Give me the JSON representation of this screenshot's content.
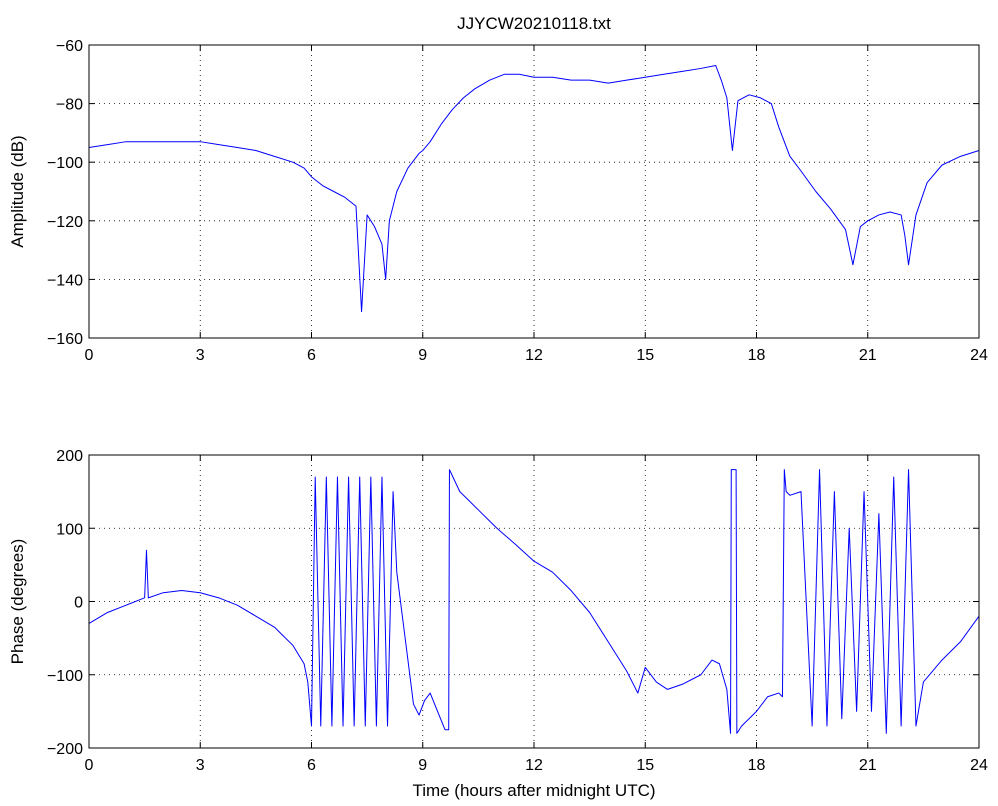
{
  "chart_data": [
    {
      "type": "line",
      "title": "JJYCW20210118.txt",
      "xlabel": "",
      "ylabel": "Amplitude (dB)",
      "xlim": [
        0,
        24
      ],
      "ylim": [
        -160,
        -60
      ],
      "xticks": [
        "0",
        "3",
        "6",
        "9",
        "12",
        "15",
        "18",
        "21",
        "24"
      ],
      "yticks": [
        "-60",
        "-80",
        "-100",
        "-120",
        "-140",
        "-160"
      ],
      "grid": true,
      "color": "#0000ff",
      "series": [
        {
          "x": [
            0,
            0.5,
            1,
            1.5,
            2,
            2.5,
            3,
            3.5,
            4,
            4.5,
            5,
            5.5,
            5.8,
            6.0,
            6.3,
            6.6,
            6.9,
            7.2,
            7.35,
            7.5,
            7.7,
            7.9,
            8.0,
            8.1,
            8.3,
            8.6,
            8.9,
            9.0,
            9.2,
            9.5,
            9.8,
            10.1,
            10.4,
            10.8,
            11.2,
            11.6,
            12,
            12.5,
            13,
            13.5,
            14,
            14.5,
            15,
            15.5,
            16,
            16.5,
            16.9,
            17.05,
            17.2,
            17.35,
            17.5,
            17.8,
            18.1,
            18.4,
            18.6,
            18.9,
            19.2,
            19.6,
            20.0,
            20.4,
            20.6,
            20.8,
            21.0,
            21.3,
            21.6,
            21.9,
            22.0,
            22.1,
            22.3,
            22.6,
            23.0,
            23.5,
            24
          ],
          "y": [
            -95,
            -94,
            -93,
            -93,
            -93,
            -93,
            -93,
            -94,
            -95,
            -96,
            -98,
            -100,
            -102,
            -105,
            -108,
            -110,
            -112,
            -115,
            -151,
            -118,
            -122,
            -128,
            -140,
            -120,
            -110,
            -102,
            -97,
            -96,
            -93,
            -87,
            -82,
            -78,
            -75,
            -72,
            -70,
            -70,
            -71,
            -71,
            -72,
            -72,
            -73,
            -72,
            -71,
            -70,
            -69,
            -68,
            -67,
            -72,
            -78,
            -96,
            -79,
            -77,
            -78,
            -80,
            -88,
            -98,
            -103,
            -110,
            -116,
            -123,
            -135,
            -122,
            -120,
            -118,
            -117,
            -118,
            -125,
            -135,
            -118,
            -107,
            -101,
            -98,
            -96
          ]
        }
      ]
    },
    {
      "type": "line",
      "title": "",
      "xlabel": "Time (hours after midnight UTC)",
      "ylabel": "Phase (degrees)",
      "xlim": [
        0,
        24
      ],
      "ylim": [
        -200,
        200
      ],
      "xticks": [
        "0",
        "3",
        "6",
        "9",
        "12",
        "15",
        "18",
        "21",
        "24"
      ],
      "yticks": [
        "200",
        "100",
        "0",
        "-100",
        "-200"
      ],
      "grid": true,
      "color": "#0000ff",
      "series": [
        {
          "x": [
            0,
            0.5,
            1,
            1.5,
            1.55,
            1.6,
            2,
            2.5,
            3,
            3.5,
            4,
            4.5,
            5,
            5.5,
            5.8,
            5.9,
            6.0,
            6.1,
            6.25,
            6.4,
            6.55,
            6.7,
            6.85,
            7.0,
            7.15,
            7.3,
            7.45,
            7.6,
            7.75,
            7.9,
            8.05,
            8.2,
            8.3,
            8.45,
            8.6,
            8.75,
            8.9,
            9.05,
            9.2,
            9.4,
            9.6,
            9.7,
            9.72,
            10,
            10.5,
            11,
            11.5,
            12,
            12.5,
            13,
            13.5,
            14,
            14.5,
            14.8,
            15.0,
            15.3,
            15.6,
            16,
            16.5,
            16.8,
            17.0,
            17.2,
            17.3,
            17.32,
            17.45,
            17.47,
            17.6,
            18.0,
            18.3,
            18.6,
            18.7,
            18.75,
            18.8,
            18.9,
            19.2,
            19.5,
            19.7,
            19.9,
            20.1,
            20.3,
            20.5,
            20.7,
            20.9,
            21.1,
            21.3,
            21.5,
            21.7,
            21.9,
            22.1,
            22.3,
            22.5,
            23,
            23.5,
            24
          ],
          "y": [
            -30,
            -15,
            -5,
            5,
            70,
            5,
            12,
            15,
            12,
            5,
            -5,
            -20,
            -35,
            -60,
            -85,
            -110,
            -170,
            170,
            -170,
            170,
            -170,
            170,
            -170,
            170,
            -170,
            170,
            -170,
            170,
            -170,
            170,
            -170,
            150,
            40,
            -20,
            -80,
            -140,
            -155,
            -135,
            -125,
            -150,
            -175,
            -175,
            180,
            150,
            125,
            100,
            78,
            55,
            40,
            15,
            -15,
            -55,
            -95,
            -125,
            -90,
            -110,
            -120,
            -113,
            -100,
            -80,
            -85,
            -120,
            -180,
            180,
            180,
            -180,
            -170,
            -150,
            -130,
            -125,
            -130,
            180,
            150,
            145,
            150,
            -170,
            180,
            -170,
            150,
            -160,
            100,
            -150,
            150,
            -150,
            120,
            -180,
            170,
            -170,
            180,
            -170,
            -110,
            -80,
            -55,
            -20
          ]
        }
      ]
    }
  ]
}
